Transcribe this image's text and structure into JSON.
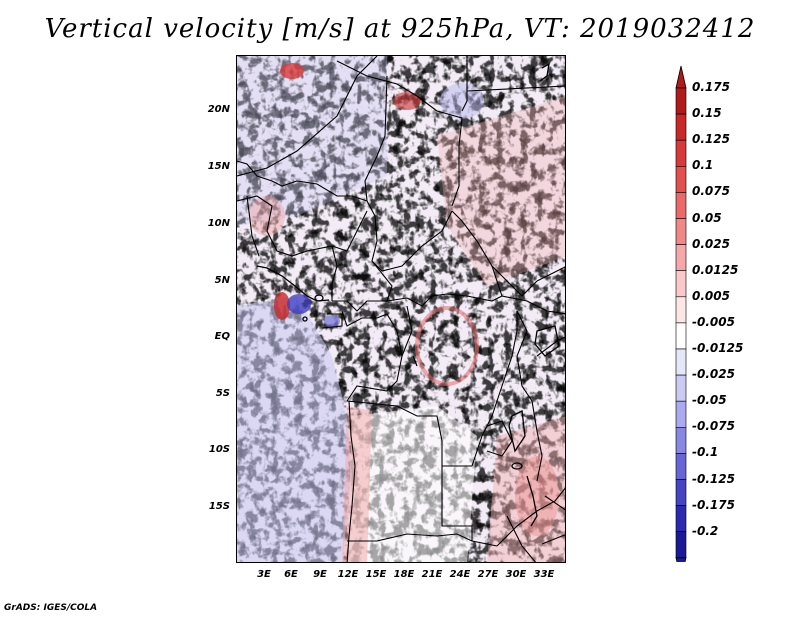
{
  "title": "Vertical velocity [m/s] at 925hPa, VT: 2019032412",
  "credit": "GrADS: IGES/COLA",
  "map": {
    "lat_labels": [
      "20N",
      "15N",
      "10N",
      "5N",
      "EQ",
      "5S",
      "10S",
      "15S"
    ],
    "lon_labels": [
      "3E",
      "6E",
      "9E",
      "12E",
      "15E",
      "18E",
      "21E",
      "24E",
      "27E",
      "30E",
      "33E"
    ]
  },
  "colorbar": {
    "labels": [
      "0.175",
      "0.15",
      "0.125",
      "0.1",
      "0.075",
      "0.05",
      "0.025",
      "0.0125",
      "0.005",
      "-0.005",
      "-0.0125",
      "-0.025",
      "-0.05",
      "-0.075",
      "-0.1",
      "-0.125",
      "-0.175",
      "-0.2"
    ],
    "colors": [
      "#b11a1a",
      "#c82828",
      "#d83a3a",
      "#e25050",
      "#ea6a6a",
      "#f08888",
      "#f5a8a8",
      "#f9c8c8",
      "#fde6e6",
      "#ffffff",
      "#e6e6fb",
      "#cacaf3",
      "#aaaaee",
      "#8888e2",
      "#6666d6",
      "#4444c4",
      "#2a2ab0",
      "#1a1a96"
    ]
  }
}
